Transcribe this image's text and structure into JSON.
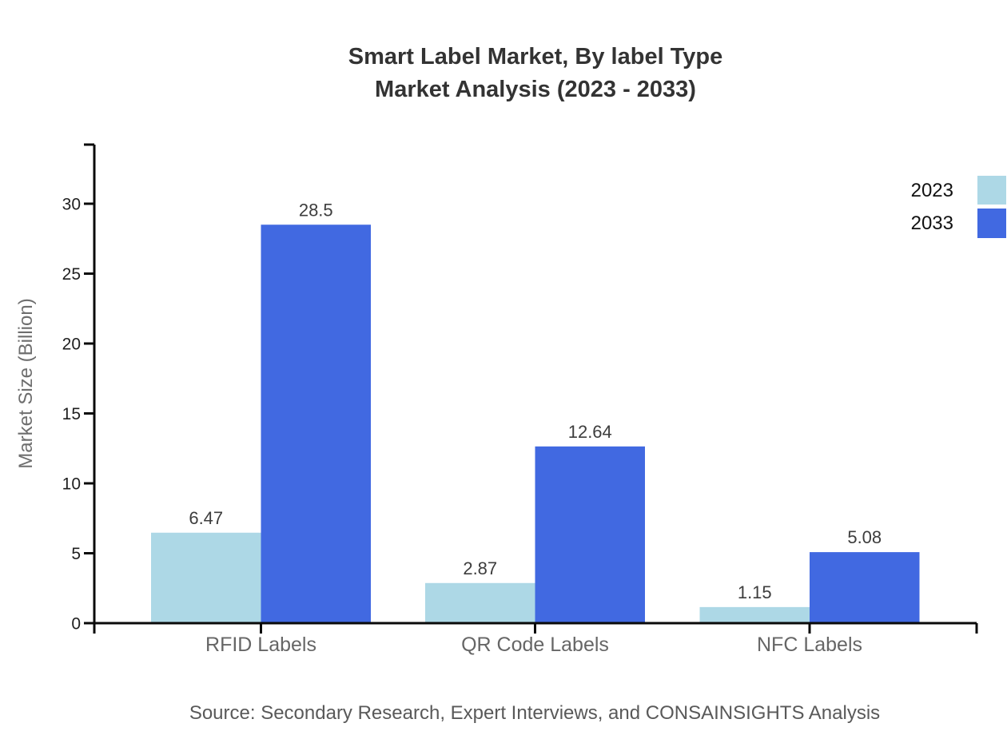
{
  "chart_data": {
    "type": "bar",
    "title_line1": "Smart Label Market, By label Type",
    "title_line2": "Market Analysis (2023 - 2033)",
    "ylabel": "Market Size (Billion)",
    "xlabel": "",
    "categories": [
      "RFID Labels",
      "QR Code Labels",
      "NFC Labels"
    ],
    "series": [
      {
        "name": "2023",
        "color": "#ADD8E6",
        "values": [
          6.47,
          2.87,
          1.15
        ],
        "value_labels": [
          "6.47",
          "2.87",
          "1.15"
        ]
      },
      {
        "name": "2033",
        "color": "#4169E1",
        "values": [
          28.5,
          12.64,
          5.08
        ],
        "value_labels": [
          "28.5",
          "12.64",
          "5.08"
        ]
      }
    ],
    "yticks": [
      0,
      5,
      10,
      15,
      20,
      25,
      30
    ],
    "ylim": [
      0,
      34.2
    ],
    "grid": false,
    "legend_position": "top-right",
    "source": "Source: Secondary Research, Expert Interviews, and CONSAINSIGHTS Analysis"
  },
  "colors": {
    "background": "#FFFFFF",
    "axis": "#0A0A0A",
    "title_text": "#333333",
    "tick_text": "#1F1F1F",
    "category_text": "#666666",
    "value_text": "#3D3D3D",
    "ylabel_text": "#6E6E6E",
    "source_text": "#595959",
    "legend_text": "#111111"
  }
}
